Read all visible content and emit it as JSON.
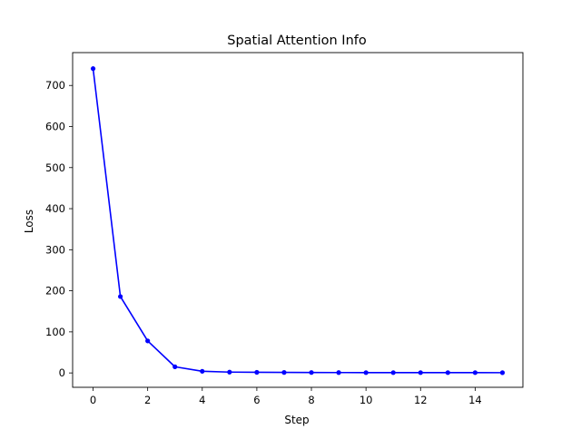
{
  "chart_data": {
    "type": "line",
    "title": "Spatial Attention Info",
    "xlabel": "Step",
    "ylabel": "Loss",
    "xlim": [
      -0.75,
      15.75
    ],
    "ylim": [
      -35,
      780
    ],
    "xticks": [
      0,
      2,
      4,
      6,
      8,
      10,
      12,
      14
    ],
    "yticks": [
      0,
      100,
      200,
      300,
      400,
      500,
      600,
      700
    ],
    "grid": false,
    "legend": "none",
    "series": [
      {
        "color": "#0000ff",
        "marker": "circle",
        "x": [
          0,
          1,
          2,
          3,
          4,
          5,
          6,
          7,
          8,
          9,
          10,
          11,
          12,
          13,
          14,
          15
        ],
        "y": [
          741,
          186,
          78,
          15,
          4,
          2,
          1.5,
          1.2,
          1,
          0.9,
          0.8,
          0.8,
          0.7,
          0.7,
          0.7,
          0.6
        ]
      }
    ]
  }
}
